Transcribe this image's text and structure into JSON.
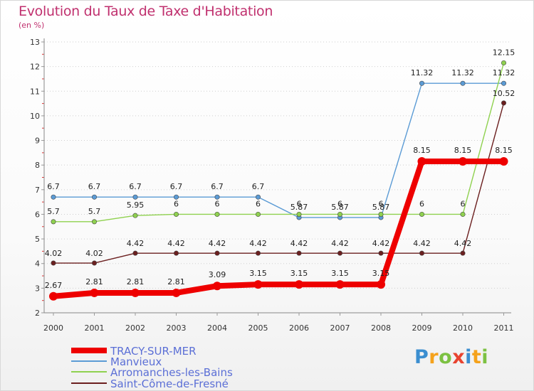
{
  "header": {
    "title": "Evolution du Taux de Taxe d'Habitation",
    "subtitle": "(en %)"
  },
  "logo": {
    "text": "Proxiti",
    "letters": [
      "P",
      "r",
      "o",
      "x",
      "i",
      "t",
      "i"
    ]
  },
  "chart_data": {
    "type": "line",
    "title": "Evolution du Taux de Taxe d'Habitation",
    "subtitle": "(en %)",
    "xlabel": "",
    "ylabel": "",
    "x": [
      "2000",
      "2001",
      "2002",
      "2003",
      "2004",
      "2005",
      "2006",
      "2007",
      "2008",
      "2009",
      "2010",
      "2011"
    ],
    "ylim": [
      2,
      13
    ],
    "yticks": [
      "2",
      "3",
      "4",
      "5",
      "6",
      "7",
      "8",
      "9",
      "10",
      "11",
      "12",
      "13"
    ],
    "grid": "horizontal dotted",
    "legend_position": "bottom-left",
    "series": [
      {
        "name": "TRACY-SUR-MER",
        "color": "#ee0000",
        "values": [
          2.67,
          2.81,
          2.81,
          2.81,
          3.09,
          3.15,
          3.15,
          3.15,
          3.15,
          8.15,
          8.15,
          8.15
        ],
        "labels": [
          "2.67",
          "2.81",
          "2.81",
          "2.81",
          "3.09",
          "3.15",
          "3.15",
          "3.15",
          "3.15",
          "8.15",
          "8.15",
          "8.15"
        ]
      },
      {
        "name": "Manvieux",
        "color": "#5b9bd5",
        "values": [
          6.7,
          6.7,
          6.7,
          6.7,
          6.7,
          6.7,
          5.87,
          5.87,
          5.87,
          11.32,
          11.32,
          11.32
        ],
        "labels": [
          "6.7",
          "6.7",
          "6.7",
          "6.7",
          "6.7",
          "6.7",
          "5.87",
          "5.87",
          "5.87",
          "11.32",
          "11.32",
          "11.32"
        ]
      },
      {
        "name": "Arromanches-les-Bains",
        "color": "#8fd14f",
        "values": [
          5.7,
          5.7,
          5.95,
          6,
          6,
          6,
          6,
          6,
          6,
          6,
          6,
          12.15
        ],
        "labels": [
          "5.7",
          "5.7",
          "5.95",
          "6",
          "6",
          "6",
          "6",
          "6",
          "6",
          "6",
          "6",
          "12.15"
        ]
      },
      {
        "name": "Saint-Côme-de-Fresné",
        "color": "#6b1f1f",
        "values": [
          4.02,
          4.02,
          4.42,
          4.42,
          4.42,
          4.42,
          4.42,
          4.42,
          4.42,
          4.42,
          4.42,
          10.52
        ],
        "labels": [
          "4.02",
          "4.02",
          "4.42",
          "4.42",
          "4.42",
          "4.42",
          "4.42",
          "4.42",
          "4.42",
          "4.42",
          "4.42",
          "10.52"
        ]
      }
    ]
  }
}
